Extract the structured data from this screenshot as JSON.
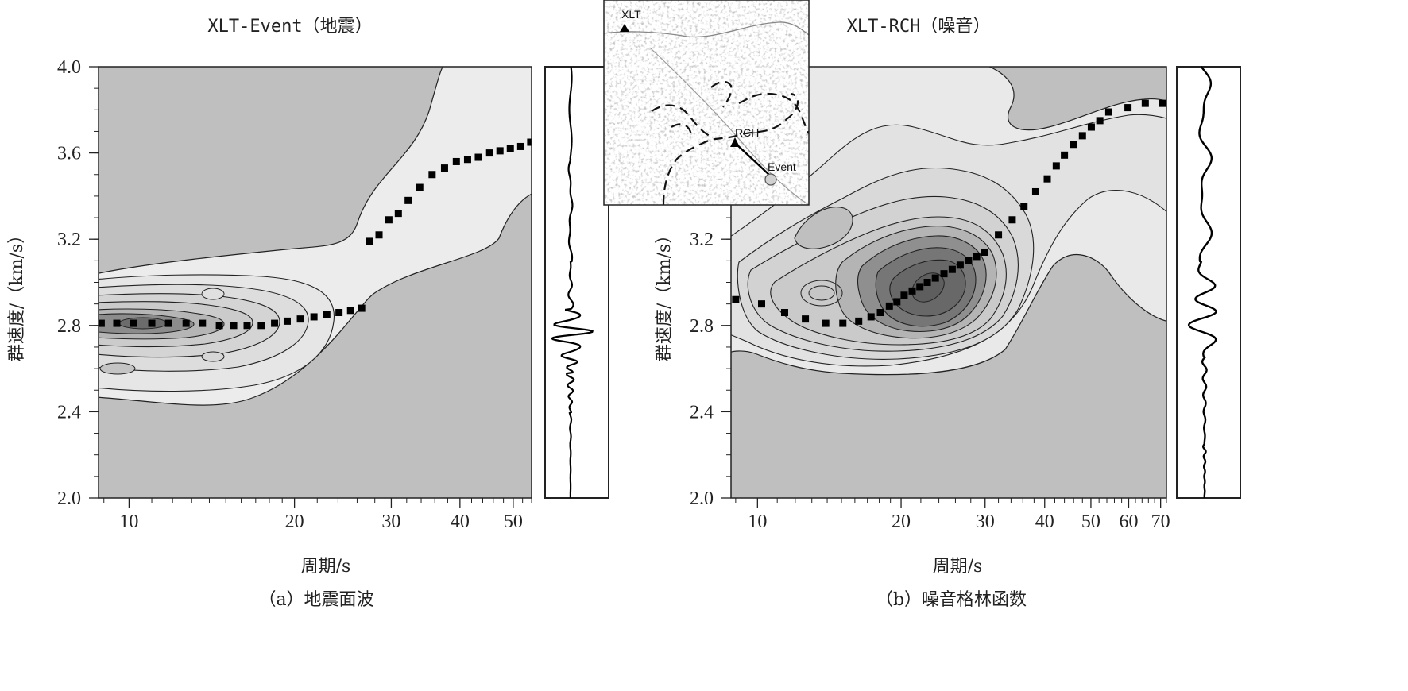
{
  "chart_data": [
    {
      "type": "scatter",
      "panel_title": "XLT-Event（地震）",
      "caption": "（a）地震面波",
      "xlabel": "周期/s",
      "ylabel": "群速度/（km/s）",
      "x_scale": "log",
      "xlim": [
        8.8,
        54
      ],
      "ylim": [
        2.0,
        4.0
      ],
      "x_ticks": [
        10,
        20,
        30,
        40,
        50
      ],
      "y_ticks": [
        "2.0",
        "2.4",
        "2.8",
        "3.2",
        "3.6",
        "4.0"
      ],
      "grid": false,
      "series": [
        {
          "points": [
            [
              8.9,
              2.81
            ],
            [
              9.5,
              2.81
            ],
            [
              10.2,
              2.81
            ],
            [
              11.0,
              2.81
            ],
            [
              11.8,
              2.81
            ],
            [
              12.7,
              2.81
            ],
            [
              13.6,
              2.81
            ],
            [
              14.6,
              2.8
            ],
            [
              15.5,
              2.8
            ],
            [
              16.4,
              2.8
            ],
            [
              17.4,
              2.8
            ],
            [
              18.4,
              2.81
            ],
            [
              19.4,
              2.82
            ],
            [
              20.5,
              2.83
            ],
            [
              21.7,
              2.84
            ],
            [
              22.9,
              2.85
            ],
            [
              24.1,
              2.86
            ],
            [
              25.3,
              2.87
            ],
            [
              26.5,
              2.88
            ],
            [
              27.4,
              3.19
            ],
            [
              28.5,
              3.22
            ],
            [
              29.7,
              3.29
            ],
            [
              30.9,
              3.32
            ],
            [
              32.2,
              3.38
            ],
            [
              33.8,
              3.44
            ],
            [
              35.6,
              3.5
            ],
            [
              37.5,
              3.53
            ],
            [
              39.4,
              3.56
            ],
            [
              41.3,
              3.57
            ],
            [
              43.2,
              3.58
            ],
            [
              45.3,
              3.6
            ],
            [
              47.3,
              3.61
            ],
            [
              49.4,
              3.62
            ],
            [
              51.6,
              3.63
            ],
            [
              53.8,
              3.65
            ]
          ]
        }
      ],
      "trace": "waveform"
    },
    {
      "type": "scatter",
      "panel_title": "XLT-RCH（噪音）",
      "caption": "（b）噪音格林函数",
      "xlabel": "周期/s",
      "ylabel": "群速度/（km/s）",
      "x_scale": "log",
      "xlim": [
        8.8,
        72
      ],
      "ylim": [
        2.0,
        4.0
      ],
      "x_ticks": [
        10,
        20,
        30,
        40,
        50,
        60,
        70
      ],
      "y_ticks": [
        "2.0",
        "2.4",
        "2.8",
        "3.2",
        "3.6",
        "4.0"
      ],
      "grid": false,
      "series": [
        {
          "points": [
            [
              9.0,
              2.92
            ],
            [
              10.2,
              2.9
            ],
            [
              11.4,
              2.86
            ],
            [
              12.6,
              2.83
            ],
            [
              13.9,
              2.81
            ],
            [
              15.1,
              2.81
            ],
            [
              16.3,
              2.82
            ],
            [
              17.3,
              2.84
            ],
            [
              18.1,
              2.86
            ],
            [
              18.9,
              2.89
            ],
            [
              19.6,
              2.91
            ],
            [
              20.3,
              2.94
            ],
            [
              21.1,
              2.96
            ],
            [
              21.9,
              2.98
            ],
            [
              22.7,
              3.0
            ],
            [
              23.6,
              3.02
            ],
            [
              24.6,
              3.04
            ],
            [
              25.6,
              3.06
            ],
            [
              26.6,
              3.08
            ],
            [
              27.7,
              3.1
            ],
            [
              28.8,
              3.12
            ],
            [
              29.9,
              3.14
            ],
            [
              32.0,
              3.22
            ],
            [
              34.2,
              3.29
            ],
            [
              36.2,
              3.35
            ],
            [
              38.3,
              3.42
            ],
            [
              40.5,
              3.48
            ],
            [
              42.3,
              3.54
            ],
            [
              44.0,
              3.59
            ],
            [
              46.0,
              3.64
            ],
            [
              48.0,
              3.68
            ],
            [
              50.1,
              3.72
            ],
            [
              52.2,
              3.75
            ],
            [
              54.5,
              3.79
            ],
            [
              59.8,
              3.81
            ],
            [
              65.0,
              3.83
            ],
            [
              70.5,
              3.83
            ]
          ]
        }
      ],
      "trace": "waveform"
    }
  ],
  "inset_map": {
    "labels": {
      "xlt": "XLT",
      "rch": "RCH",
      "event": "Event"
    }
  }
}
